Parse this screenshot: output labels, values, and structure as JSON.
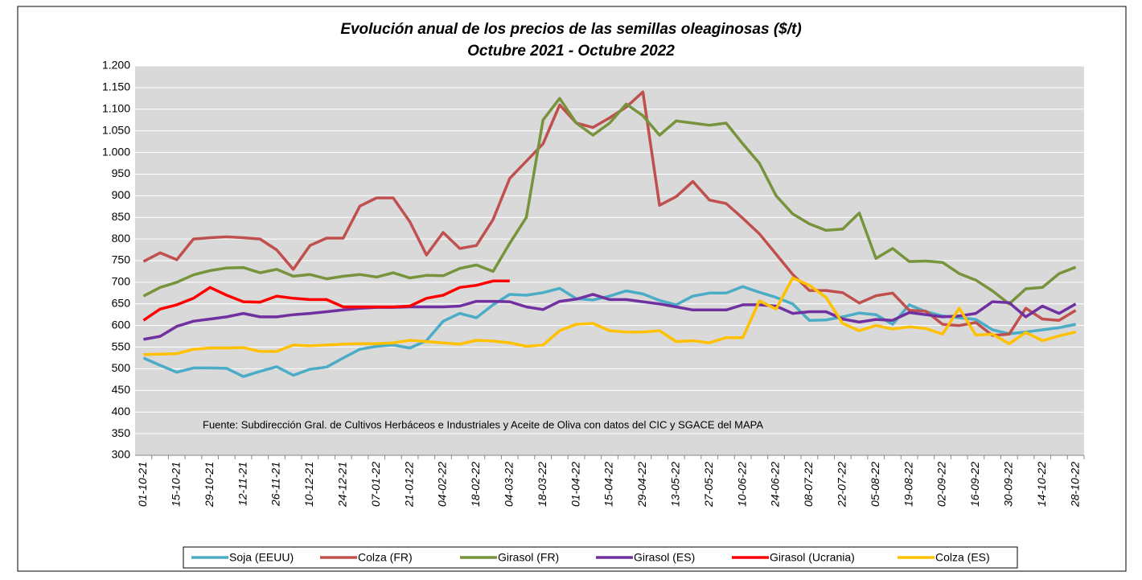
{
  "chart_data": {
    "type": "line",
    "title": "Evolución anual de los precios de las semillas oleaginosas ($/t)",
    "subtitle": "Octubre 2021 - Octubre 2022",
    "note": "Fuente: Subdirección Gral. de Cultivos Herbáceos e Industriales y Aceite de Oliva con datos del CIC y SGACE del MAPA",
    "categories": [
      "01-10-21",
      null,
      "15-10-21",
      null,
      "29-10-21",
      null,
      "12-11-21",
      null,
      "26-11-21",
      null,
      "10-12-21",
      null,
      "24-12-21",
      null,
      "07-01-22",
      null,
      "21-01-22",
      null,
      "04-02-22",
      null,
      "18-02-22",
      null,
      "04-03-22",
      null,
      "18-03-22",
      null,
      "01-04-22",
      null,
      "15-04-22",
      null,
      "29-04-22",
      null,
      "13-05-22",
      null,
      "27-05-22",
      null,
      "10-06-22",
      null,
      "24-06-22",
      null,
      "08-07-22",
      null,
      "22-07-22",
      null,
      "05-08-22",
      null,
      "19-08-22",
      null,
      "02-09-22",
      null,
      "16-09-22",
      null,
      "30-09-22",
      null,
      "14-10-22",
      null,
      "28-10-22"
    ],
    "series": [
      {
        "name": "Soja (EEUU)",
        "color": "#4bacc6",
        "values": [
          525,
          508,
          492,
          502,
          502,
          501,
          482,
          494,
          505,
          485,
          499,
          504,
          525,
          545,
          552,
          555,
          548,
          565,
          610,
          628,
          618,
          648,
          672,
          670,
          676,
          686,
          662,
          659,
          668,
          680,
          673,
          658,
          648,
          668,
          675,
          675,
          690,
          677,
          665,
          650,
          612,
          613,
          620,
          629,
          625,
          603,
          648,
          632,
          622,
          618,
          614,
          590,
          581,
          585,
          590,
          595,
          603
        ]
      },
      {
        "name": "Colza (FR)",
        "color": "#c0504d",
        "values": [
          748,
          768,
          752,
          800,
          803,
          805,
          803,
          800,
          775,
          730,
          785,
          802,
          802,
          876,
          895,
          895,
          840,
          763,
          815,
          778,
          785,
          845,
          940,
          980,
          1020,
          1110,
          1068,
          1058,
          1080,
          1105,
          1140,
          878,
          898,
          933,
          890,
          882,
          848,
          812,
          765,
          718,
          681,
          681,
          676,
          652,
          669,
          675,
          635,
          633,
          603,
          600,
          607,
          577,
          580,
          640,
          615,
          612,
          635
        ]
      },
      {
        "name": "Girasol (FR)",
        "color": "#77933c",
        "values": [
          668,
          688,
          700,
          717,
          727,
          733,
          734,
          722,
          730,
          714,
          718,
          708,
          714,
          718,
          712,
          722,
          710,
          716,
          715,
          732,
          740,
          725,
          790,
          850,
          1075,
          1125,
          1068,
          1040,
          1068,
          1112,
          1085,
          1040,
          1073,
          1068,
          1063,
          1068,
          1020,
          975,
          900,
          858,
          835,
          820,
          823,
          860,
          755,
          778,
          748,
          749,
          746,
          720,
          705,
          680,
          650,
          685,
          688,
          720,
          735
        ]
      },
      {
        "name": "Girasol (ES)",
        "color": "#7030a0",
        "values": [
          568,
          575,
          598,
          610,
          615,
          620,
          628,
          620,
          620,
          625,
          628,
          632,
          636,
          640,
          642,
          642,
          643,
          643,
          643,
          645,
          656,
          656,
          655,
          643,
          637,
          656,
          661,
          672,
          660,
          660,
          655,
          650,
          643,
          636,
          636,
          636,
          648,
          648,
          645,
          628,
          632,
          632,
          615,
          608,
          614,
          612,
          630,
          625,
          620,
          622,
          628,
          655,
          653,
          620,
          645,
          628,
          650
        ]
      },
      {
        "name": "Girasol (Ucrania)",
        "color": "#ff0000",
        "values": [
          612,
          638,
          648,
          663,
          688,
          670,
          655,
          654,
          668,
          663,
          660,
          660,
          643,
          643,
          643,
          643,
          645,
          663,
          670,
          688,
          693,
          703,
          703,
          null,
          null,
          null,
          null,
          null,
          null,
          null,
          null,
          null,
          null,
          null,
          null,
          null,
          null,
          null,
          null,
          null,
          null,
          null,
          null,
          null,
          null,
          null,
          null,
          null,
          null,
          null,
          null,
          null,
          null,
          null,
          null,
          null,
          null
        ]
      },
      {
        "name": "Colza (ES)",
        "color": "#ffc000",
        "values": [
          533,
          534,
          535,
          545,
          548,
          548,
          549,
          540,
          540,
          555,
          553,
          555,
          557,
          558,
          558,
          560,
          566,
          563,
          560,
          557,
          566,
          564,
          560,
          552,
          555,
          588,
          603,
          605,
          588,
          585,
          585,
          588,
          563,
          565,
          560,
          572,
          572,
          657,
          638,
          710,
          693,
          665,
          605,
          588,
          600,
          592,
          597,
          593,
          580,
          640,
          578,
          580,
          558,
          584,
          565,
          576,
          585
        ]
      }
    ],
    "ylim": [
      300,
      1200
    ],
    "yticks": [
      300,
      350,
      400,
      450,
      500,
      550,
      600,
      650,
      700,
      750,
      800,
      850,
      900,
      950,
      {
        "value": 1000,
        "label": "1.000"
      },
      {
        "value": 1050,
        "label": "1.050"
      },
      {
        "value": 1100,
        "label": "1.100"
      },
      {
        "value": 1150,
        "label": "1.150"
      },
      {
        "value": 1200,
        "label": "1.200"
      }
    ],
    "grid": true,
    "legend": "bottom"
  }
}
